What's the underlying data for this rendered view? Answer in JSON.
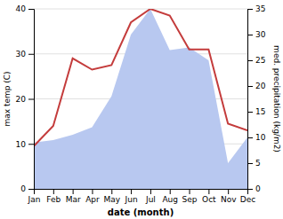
{
  "chart_data": {
    "type": "line",
    "xlabel": "date (month)",
    "ylabel": "max temp (C)",
    "y2label": "med. precipitation (kg/m2)",
    "categories": [
      "Jan",
      "Feb",
      "Mar",
      "Apr",
      "May",
      "Jun",
      "Jul",
      "Aug",
      "Sep",
      "Oct",
      "Nov",
      "Dec"
    ],
    "series": [
      {
        "type": "area",
        "axis": "y2",
        "color": "#b8c8f0",
        "values": [
          9.0,
          9.5,
          10.5,
          12.0,
          18.0,
          30.0,
          35.0,
          27.0,
          27.5,
          25.0,
          5.0,
          10.0
        ]
      },
      {
        "type": "line",
        "color": "#c43c3c",
        "values": [
          9.5,
          14.0,
          29.0,
          26.5,
          27.5,
          37.0,
          40.0,
          38.5,
          31.0,
          31.0,
          14.5,
          13.0
        ]
      }
    ],
    "ylim": [
      0,
      40
    ],
    "yticks": [
      0,
      10,
      20,
      30,
      40
    ],
    "y2lim": [
      0,
      35
    ],
    "y2ticks": [
      0,
      5,
      10,
      15,
      20,
      25,
      30,
      35
    ],
    "grid": true
  }
}
